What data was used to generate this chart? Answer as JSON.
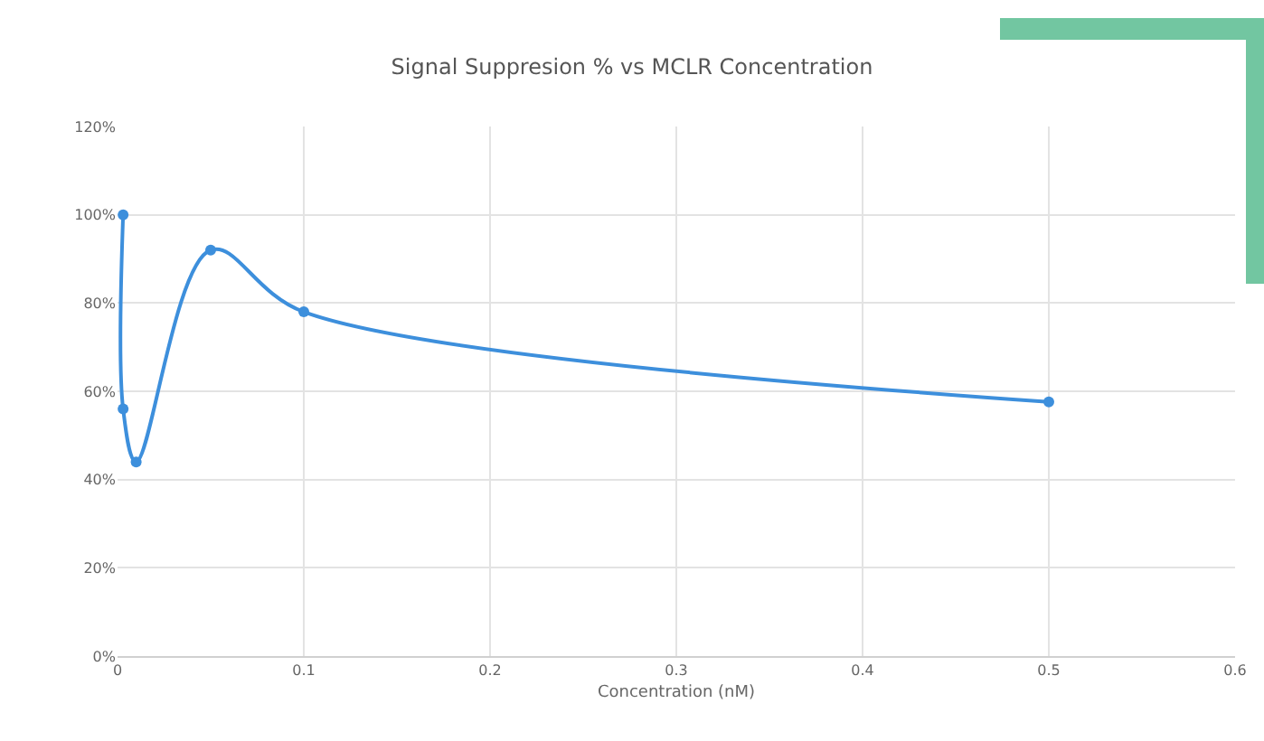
{
  "chart_data": {
    "type": "line",
    "title": "Signal Suppresion % vs MCLR Concentration",
    "xlabel": "Concentration (nM)",
    "series": [
      {
        "color": "#3d8fdc",
        "x": [
          0.003,
          0.003,
          0.01,
          0.05,
          0.1,
          0.5
        ],
        "values": [
          100,
          56,
          44,
          92,
          78,
          57.6
        ]
      }
    ],
    "xlim": [
      0,
      0.6
    ],
    "xticks": [
      0,
      0.1,
      0.2,
      0.3,
      0.4,
      0.5,
      0.6
    ],
    "ylim": [
      0,
      120
    ],
    "yticks": [
      {
        "value": 0,
        "label": "0%"
      },
      {
        "value": 20,
        "label": "20%"
      },
      {
        "value": 40,
        "label": "40%"
      },
      {
        "value": 60,
        "label": "60%"
      },
      {
        "value": 80,
        "label": "80%"
      },
      {
        "value": 100,
        "label": "100%"
      },
      {
        "value": 120,
        "label": "120%"
      }
    ],
    "grid": true,
    "marker": "circle",
    "line_style": "solid"
  }
}
